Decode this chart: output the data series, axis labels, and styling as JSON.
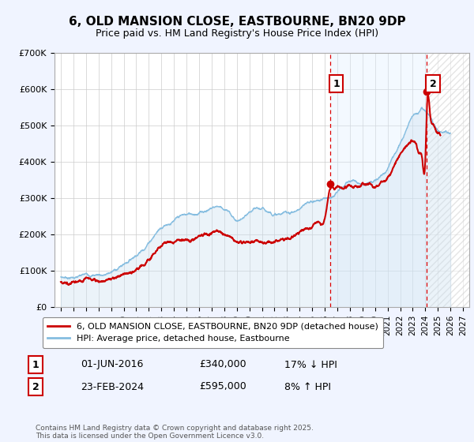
{
  "title": "6, OLD MANSION CLOSE, EASTBOURNE, BN20 9DP",
  "subtitle": "Price paid vs. HM Land Registry's House Price Index (HPI)",
  "hpi_label": "HPI: Average price, detached house, Eastbourne",
  "property_label": "6, OLD MANSION CLOSE, EASTBOURNE, BN20 9DP (detached house)",
  "hpi_color": "#85bde0",
  "hpi_fill_color": "#c8dff0",
  "property_color": "#cc0000",
  "marker1_date": 2016.42,
  "marker1_price": 340000,
  "marker1_text": "01-JUN-2016",
  "marker1_hpi_diff": "17% ↓ HPI",
  "marker2_date": 2024.12,
  "marker2_price": 595000,
  "marker2_text": "23-FEB-2024",
  "marker2_hpi_diff": "8% ↑ HPI",
  "ylim_max": 700000,
  "xlim_start": 1994.5,
  "xlim_end": 2027.5,
  "footer": "Contains HM Land Registry data © Crown copyright and database right 2025.\nThis data is licensed under the Open Government Licence v3.0.",
  "background_color": "#f0f4ff",
  "plot_background": "#ffffff",
  "grid_color": "#cccccc",
  "hatch_color": "#cccccc",
  "yticks": [
    0,
    100000,
    200000,
    300000,
    400000,
    500000,
    600000,
    700000
  ],
  "ytick_labels": [
    "£0",
    "£100K",
    "£200K",
    "£300K",
    "£400K",
    "£500K",
    "£600K",
    "£700K"
  ],
  "xticks": [
    1995,
    1996,
    1997,
    1998,
    1999,
    2000,
    2001,
    2002,
    2003,
    2004,
    2005,
    2006,
    2007,
    2008,
    2009,
    2010,
    2011,
    2012,
    2013,
    2014,
    2015,
    2016,
    2017,
    2018,
    2019,
    2020,
    2021,
    2022,
    2023,
    2024,
    2025,
    2026,
    2027
  ]
}
